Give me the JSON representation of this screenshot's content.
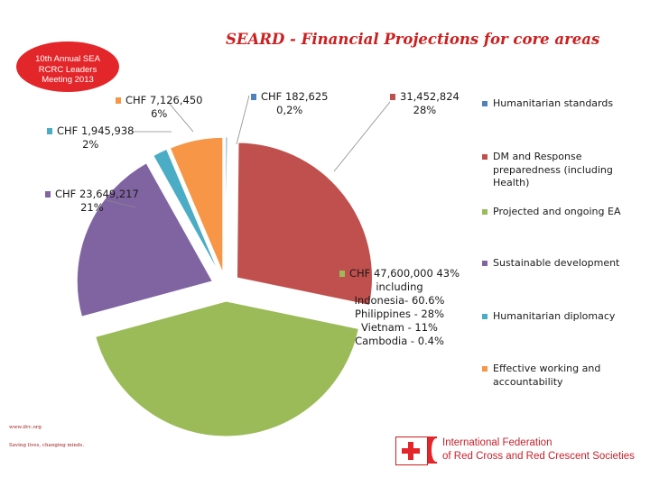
{
  "header": {
    "title": "SEARD -  Financial Projections for core areas",
    "badge_line1": "10th Annual SEA",
    "badge_line2": "RCRC Leaders",
    "badge_line3": "Meeting 2013"
  },
  "chart_data": {
    "type": "pie",
    "title": "SEARD -  Financial Projections for core areas",
    "unit": "CHF",
    "slices": [
      {
        "name": "Humanitarian standards",
        "value": 182625,
        "percent": 0.2,
        "color": "#4f81bd",
        "label_line1": "CHF 182,625",
        "label_line2": "0,2%"
      },
      {
        "name": "DM and Response preparedness (including Health)",
        "value": 31452824,
        "percent": 28,
        "color": "#c0504d",
        "label_line1": "31,452,824",
        "label_line2": "28%"
      },
      {
        "name": "Projected and ongoing EA",
        "value": 47600000,
        "percent": 43,
        "color": "#9bbb59",
        "label_line1": "CHF 47,600,000  43%",
        "label_line2": "including",
        "label_line3": "Indonesia- 60.6%",
        "label_line4": "Philippines - 28%",
        "label_line5": "Vietnam - 11%",
        "label_line6": "Cambodia - 0.4%"
      },
      {
        "name": "Sustainable development",
        "value": 23649217,
        "percent": 21,
        "color": "#8064a2",
        "label_line1": "CHF 23,649,217",
        "label_line2": "21%"
      },
      {
        "name": "Humanitarian diplomacy",
        "value": 1945938,
        "percent": 2,
        "color": "#4bacc6",
        "label_line1": "CHF 1,945,938",
        "label_line2": "2%"
      },
      {
        "name": "Effective working and accountability",
        "value": 7126450,
        "percent": 6,
        "color": "#f79646",
        "label_line1": "CHF  7,126,450",
        "label_line2": "6%"
      }
    ],
    "legend": [
      {
        "label": "Humanitarian standards",
        "color": "#4f81bd"
      },
      {
        "label": "DM and Response preparedness (including Health)",
        "color": "#c0504d"
      },
      {
        "label": "Projected and ongoing EA",
        "color": "#9bbb59"
      },
      {
        "label": "Sustainable development",
        "color": "#8064a2"
      },
      {
        "label": "Humanitarian diplomacy",
        "color": "#4bacc6"
      },
      {
        "label": "Effective working and accountability",
        "color": "#f79646"
      }
    ],
    "legend_position": "right"
  },
  "footer": {
    "url": "www.ifrc.org",
    "tagline": "Saving lives, changing minds.",
    "org_line1": "International Federation",
    "org_line2": "of Red Cross and Red Crescent Societies"
  }
}
